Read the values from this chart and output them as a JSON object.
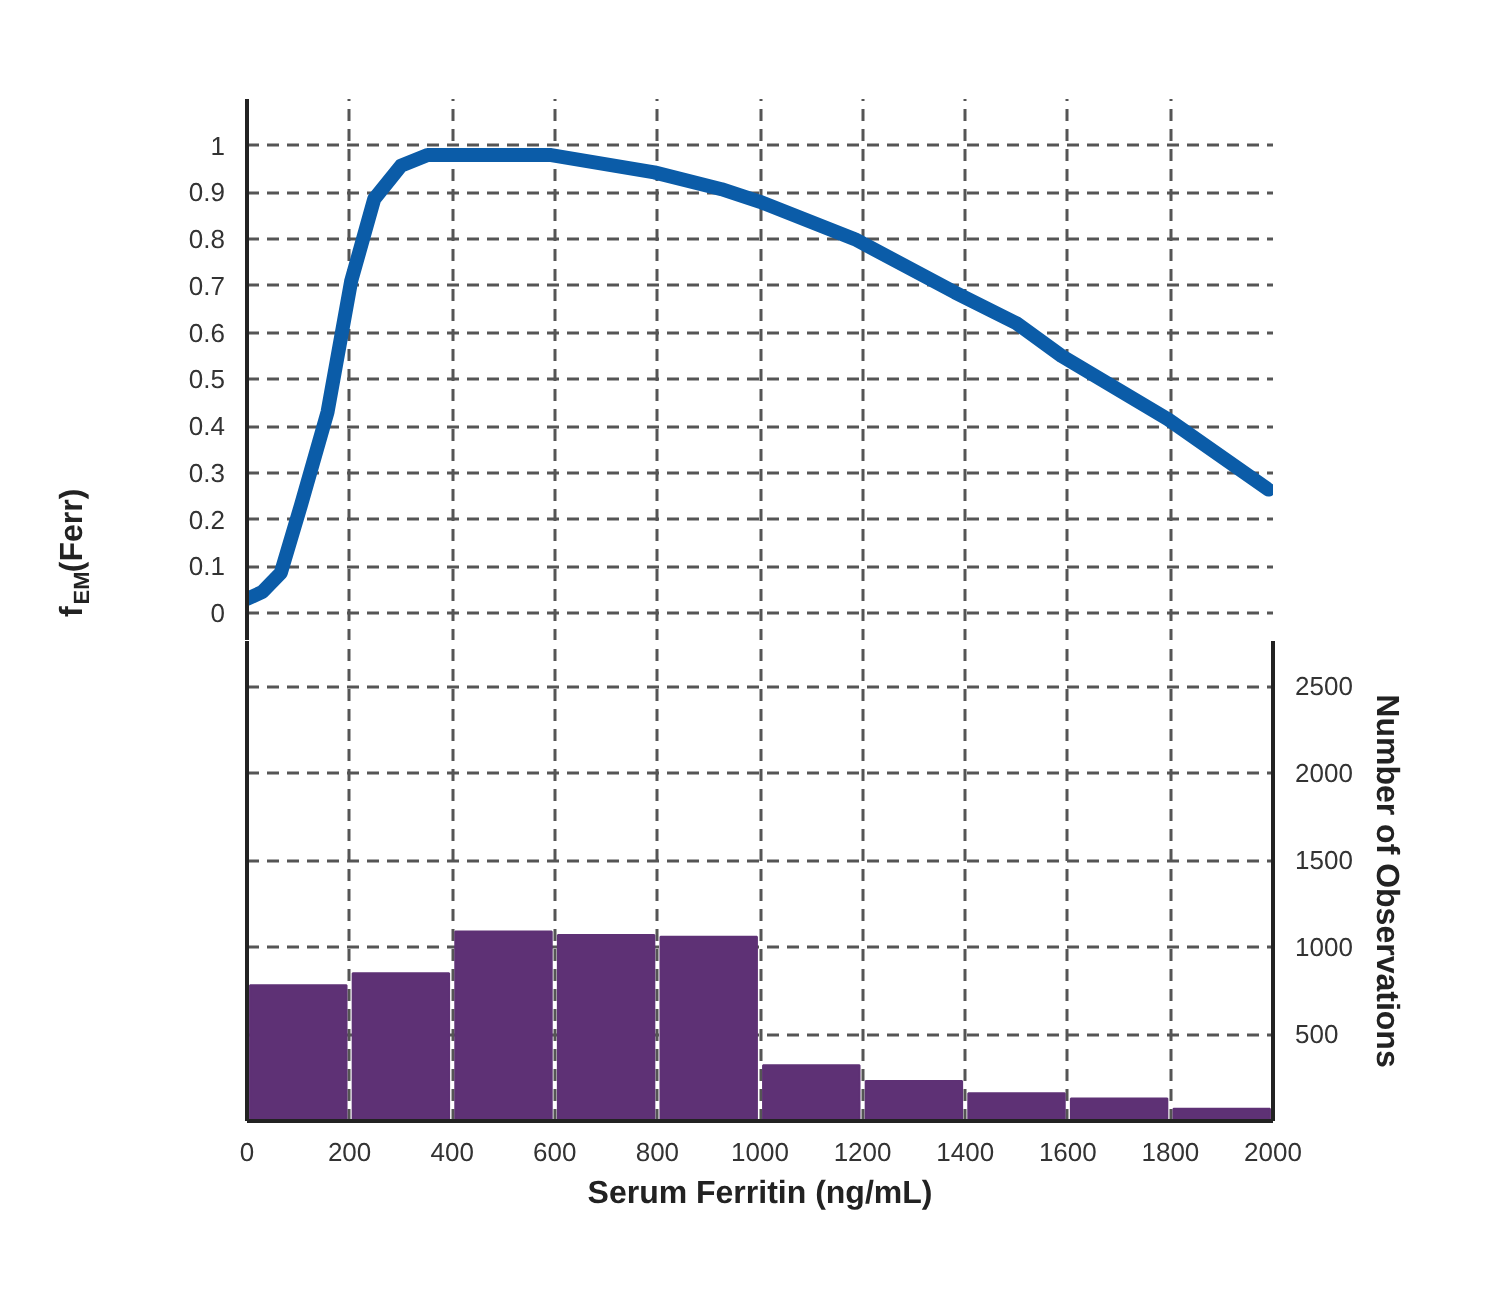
{
  "chart_data": [
    {
      "type": "line",
      "ylabel": "f$_{EM}$(Ferr)",
      "xlim": [
        0,
        2000
      ],
      "xticks": [
        0,
        200,
        400,
        600,
        800,
        1000,
        1200,
        1400,
        1600,
        1800,
        2000
      ],
      "ylim": [
        -0.06,
        1.1
      ],
      "yticks": [
        0,
        0.1,
        0.2,
        0.3,
        0.4,
        0.5,
        0.6,
        0.7,
        0.8,
        0.9,
        1
      ],
      "tick_labels": "y",
      "grid": true,
      "line_style": "solid",
      "series": [
        {
          "color": "#0b5ca8",
          "x": [
            0,
            30,
            66,
            105,
            157,
            203,
            248,
            300,
            352,
            450,
            593,
            794,
            925,
            1000,
            1185,
            1380,
            1500,
            1588,
            1796,
            1991
          ],
          "values": [
            0.03,
            0.045,
            0.086,
            0.23,
            0.43,
            0.71,
            0.886,
            0.957,
            0.98,
            0.98,
            0.98,
            0.943,
            0.907,
            0.88,
            0.8,
            0.686,
            0.62,
            0.55,
            0.414,
            0.264
          ]
        }
      ]
    },
    {
      "type": "histogram",
      "xlabel": "Serum Ferritin (ng/mL)",
      "ylabel": "Number of Observations",
      "xlim": [
        0,
        2000
      ],
      "xticks": [
        0,
        200,
        400,
        600,
        800,
        1000,
        1200,
        1400,
        1600,
        1800,
        2000
      ],
      "ylim": [
        0,
        2760
      ],
      "yticks": [
        500,
        1000,
        1500,
        2000,
        2500
      ],
      "grid": true,
      "color": "#5e3175",
      "bins": [
        0,
        200,
        400,
        600,
        800,
        1000,
        1200,
        1400,
        1600,
        1800,
        2000
      ],
      "values": [
        780,
        850,
        1090,
        1070,
        1060,
        320,
        230,
        160,
        130,
        70
      ]
    }
  ]
}
